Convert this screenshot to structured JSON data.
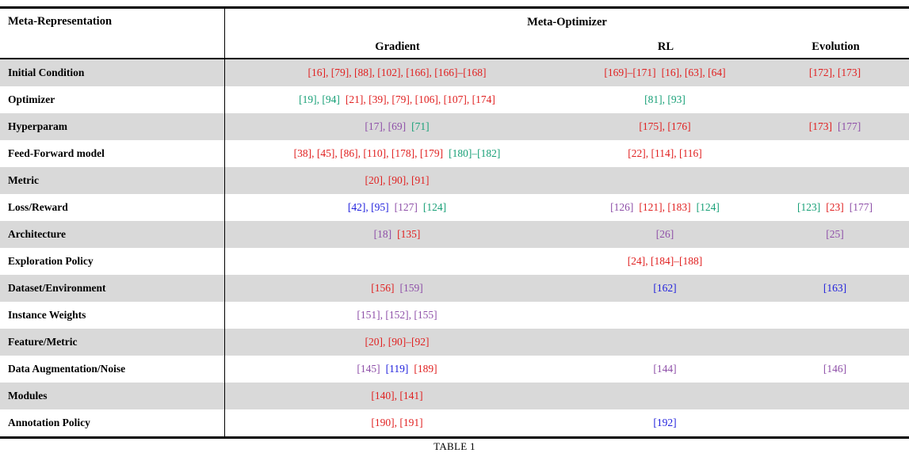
{
  "caption": "TABLE 1",
  "table": {
    "header": {
      "col1": "Meta-Representation",
      "group": "Meta-Optimizer",
      "subcols": [
        "Gradient",
        "RL",
        "Evolution"
      ]
    },
    "colors": {
      "red": "#e02020",
      "green": "#18a077",
      "purple": "#8e4fa8",
      "blue": "#2121dd"
    },
    "rows": [
      {
        "label": "Initial Condition",
        "shaded": true,
        "gradient": [
          {
            "text": "[16], [79], [88], [102], [166], [166]–[168]",
            "color": "red"
          }
        ],
        "rl": [
          {
            "text": "[169]–[171]",
            "color": "red"
          },
          {
            "text": "[16], [63], [64]",
            "color": "red"
          }
        ],
        "evolution": [
          {
            "text": "[172], [173]",
            "color": "red"
          }
        ]
      },
      {
        "label": "Optimizer",
        "shaded": false,
        "gradient": [
          {
            "text": "[19], [94]",
            "color": "green"
          },
          {
            "text": "[21], [39], [79], [106], [107], [174]",
            "color": "red"
          }
        ],
        "rl": [
          {
            "text": "[81], [93]",
            "color": "green"
          }
        ],
        "evolution": []
      },
      {
        "label": "Hyperparam",
        "shaded": true,
        "gradient": [
          {
            "text": "[17], [69]",
            "color": "purple"
          },
          {
            "text": "[71]",
            "color": "green"
          }
        ],
        "rl": [
          {
            "text": "[175], [176]",
            "color": "red"
          }
        ],
        "evolution": [
          {
            "text": "[173]",
            "color": "red"
          },
          {
            "text": "[177]",
            "color": "purple"
          }
        ]
      },
      {
        "label": "Feed-Forward model",
        "shaded": false,
        "gradient": [
          {
            "text": "[38], [45], [86], [110], [178], [179]",
            "color": "red"
          },
          {
            "text": "[180]–[182]",
            "color": "green"
          }
        ],
        "rl": [
          {
            "text": "[22], [114], [116]",
            "color": "red"
          }
        ],
        "evolution": []
      },
      {
        "label": "Metric",
        "shaded": true,
        "gradient": [
          {
            "text": "[20], [90], [91]",
            "color": "red"
          }
        ],
        "rl": [],
        "evolution": []
      },
      {
        "label": "Loss/Reward",
        "shaded": false,
        "gradient": [
          {
            "text": "[42], [95]",
            "color": "blue"
          },
          {
            "text": "[127]",
            "color": "purple"
          },
          {
            "text": "[124]",
            "color": "green"
          }
        ],
        "rl": [
          {
            "text": "[126]",
            "color": "purple"
          },
          {
            "text": "[121], [183]",
            "color": "red"
          },
          {
            "text": "[124]",
            "color": "green"
          }
        ],
        "evolution": [
          {
            "text": "[123]",
            "color": "green"
          },
          {
            "text": "[23]",
            "color": "red"
          },
          {
            "text": "[177]",
            "color": "purple"
          }
        ]
      },
      {
        "label": "Architecture",
        "shaded": true,
        "gradient": [
          {
            "text": "[18]",
            "color": "purple"
          },
          {
            "text": "[135]",
            "color": "red"
          }
        ],
        "rl": [
          {
            "text": "[26]",
            "color": "purple"
          }
        ],
        "evolution": [
          {
            "text": "[25]",
            "color": "purple"
          }
        ]
      },
      {
        "label": "Exploration Policy",
        "shaded": false,
        "gradient": [],
        "rl": [
          {
            "text": "[24], [184]–[188]",
            "color": "red"
          }
        ],
        "evolution": []
      },
      {
        "label": "Dataset/Environment",
        "shaded": true,
        "gradient": [
          {
            "text": "[156]",
            "color": "red"
          },
          {
            "text": "[159]",
            "color": "purple"
          }
        ],
        "rl": [
          {
            "text": "[162]",
            "color": "blue"
          }
        ],
        "evolution": [
          {
            "text": "[163]",
            "color": "blue"
          }
        ]
      },
      {
        "label": "Instance Weights",
        "shaded": false,
        "gradient": [
          {
            "text": "[151], [152], [155]",
            "color": "purple"
          }
        ],
        "rl": [],
        "evolution": []
      },
      {
        "label": "Feature/Metric",
        "shaded": true,
        "gradient": [
          {
            "text": "[20], [90]–[92]",
            "color": "red"
          }
        ],
        "rl": [],
        "evolution": []
      },
      {
        "label": "Data Augmentation/Noise",
        "shaded": false,
        "gradient": [
          {
            "text": "[145]",
            "color": "purple"
          },
          {
            "text": "[119]",
            "color": "blue"
          },
          {
            "text": "[189]",
            "color": "red"
          }
        ],
        "rl": [
          {
            "text": "[144]",
            "color": "purple"
          }
        ],
        "evolution": [
          {
            "text": "[146]",
            "color": "purple"
          }
        ]
      },
      {
        "label": "Modules",
        "shaded": true,
        "gradient": [
          {
            "text": "[140], [141]",
            "color": "red"
          }
        ],
        "rl": [],
        "evolution": []
      },
      {
        "label": "Annotation Policy",
        "shaded": false,
        "gradient": [
          {
            "text": "[190], [191]",
            "color": "red"
          }
        ],
        "rl": [
          {
            "text": "[192]",
            "color": "blue"
          }
        ],
        "evolution": []
      }
    ]
  }
}
